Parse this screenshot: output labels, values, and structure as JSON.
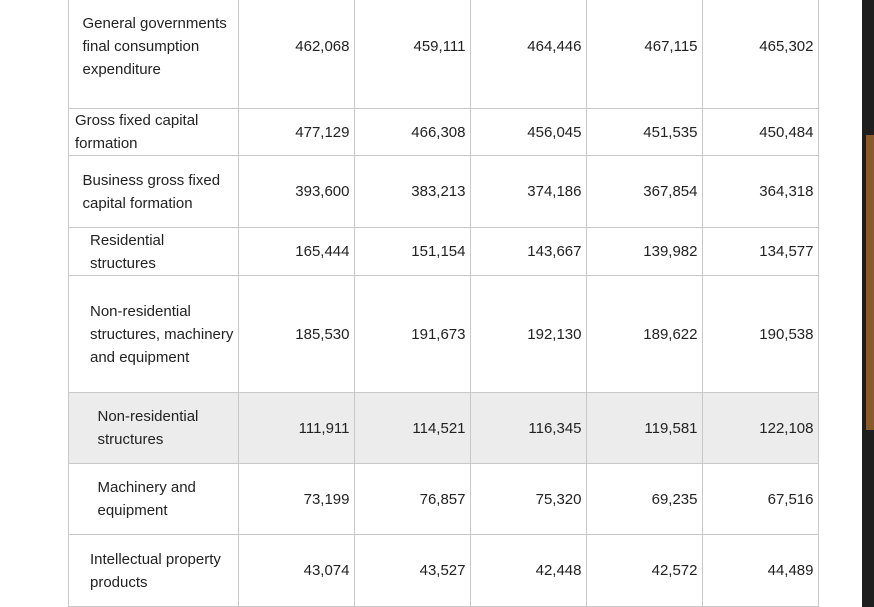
{
  "table": {
    "rows": [
      {
        "label": "General governments final consumption expenditure",
        "indent": 1,
        "values": [
          "462,068",
          "459,111",
          "464,446",
          "467,115",
          "465,302"
        ]
      },
      {
        "label": "Gross fixed capital formation",
        "indent": 0,
        "values": [
          "477,129",
          "466,308",
          "456,045",
          "451,535",
          "450,484"
        ]
      },
      {
        "label": "Business gross fixed capital formation",
        "indent": 1,
        "values": [
          "393,600",
          "383,213",
          "374,186",
          "367,854",
          "364,318"
        ]
      },
      {
        "label": "Residential structures",
        "indent": 2,
        "values": [
          "165,444",
          "151,154",
          "143,667",
          "139,982",
          "134,577"
        ]
      },
      {
        "label": "Non-residential structures, machinery and equipment",
        "indent": 2,
        "values": [
          "185,530",
          "191,673",
          "192,130",
          "189,622",
          "190,538"
        ]
      },
      {
        "label": "Non-residential structures",
        "indent": 3,
        "values": [
          "111,911",
          "114,521",
          "116,345",
          "119,581",
          "122,108"
        ]
      },
      {
        "label": "Machinery and equipment",
        "indent": 3,
        "values": [
          "73,199",
          "76,857",
          "75,320",
          "69,235",
          "67,516"
        ]
      },
      {
        "label": "Intellectual property products",
        "indent": 2,
        "values": [
          "43,074",
          "43,527",
          "42,448",
          "42,572",
          "44,489"
        ]
      }
    ]
  }
}
